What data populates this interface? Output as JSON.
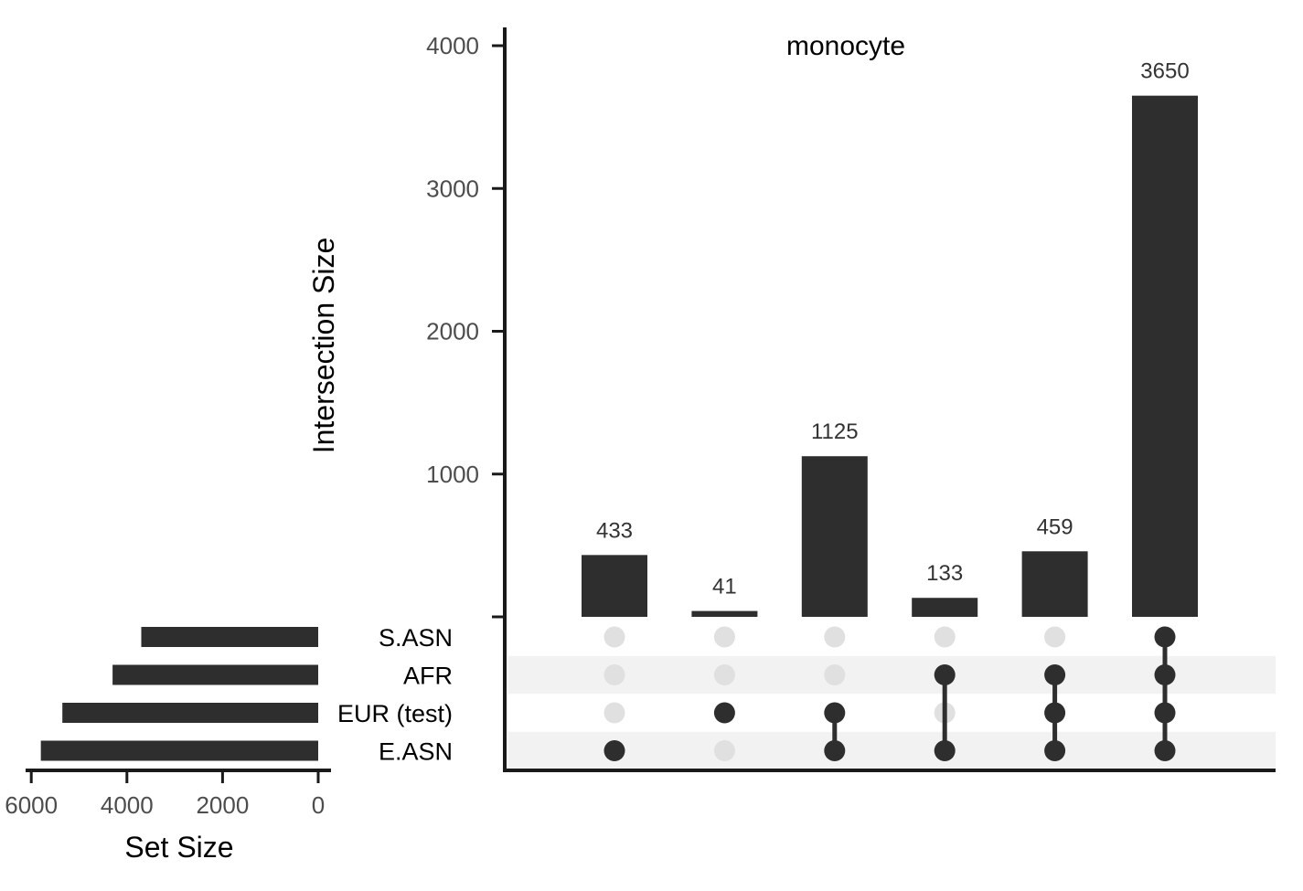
{
  "chart_data": {
    "type": "bar",
    "title": "monocyte",
    "ylabel": "Intersection Size",
    "ylim": [
      0,
      4100
    ],
    "yticks": [
      0,
      1000,
      2000,
      3000,
      4000
    ],
    "sets": [
      "S.ASN",
      "AFR",
      "EUR (test)",
      "E.ASN"
    ],
    "intersections": [
      {
        "members": [
          "E.ASN"
        ],
        "value": 433
      },
      {
        "members": [
          "EUR (test)"
        ],
        "value": 41
      },
      {
        "members": [
          "EUR (test)",
          "E.ASN"
        ],
        "value": 1125
      },
      {
        "members": [
          "AFR",
          "E.ASN"
        ],
        "value": 133
      },
      {
        "members": [
          "AFR",
          "EUR (test)",
          "E.ASN"
        ],
        "value": 459
      },
      {
        "members": [
          "S.ASN",
          "AFR",
          "EUR (test)",
          "E.ASN"
        ],
        "value": 3650
      }
    ],
    "set_size": {
      "xlabel": "Set Size",
      "xticks": [
        6000,
        4000,
        2000,
        0
      ],
      "values": [
        {
          "set": "S.ASN",
          "value": 3700
        },
        {
          "set": "AFR",
          "value": 4300
        },
        {
          "set": "EUR (test)",
          "value": 5350
        },
        {
          "set": "E.ASN",
          "value": 5800
        }
      ]
    },
    "colors": {
      "bar": "#2e2e2e",
      "dot_active": "#2e2e2e",
      "dot_inactive": "#e0e0e0",
      "stripe": "#f2f2f2"
    }
  }
}
